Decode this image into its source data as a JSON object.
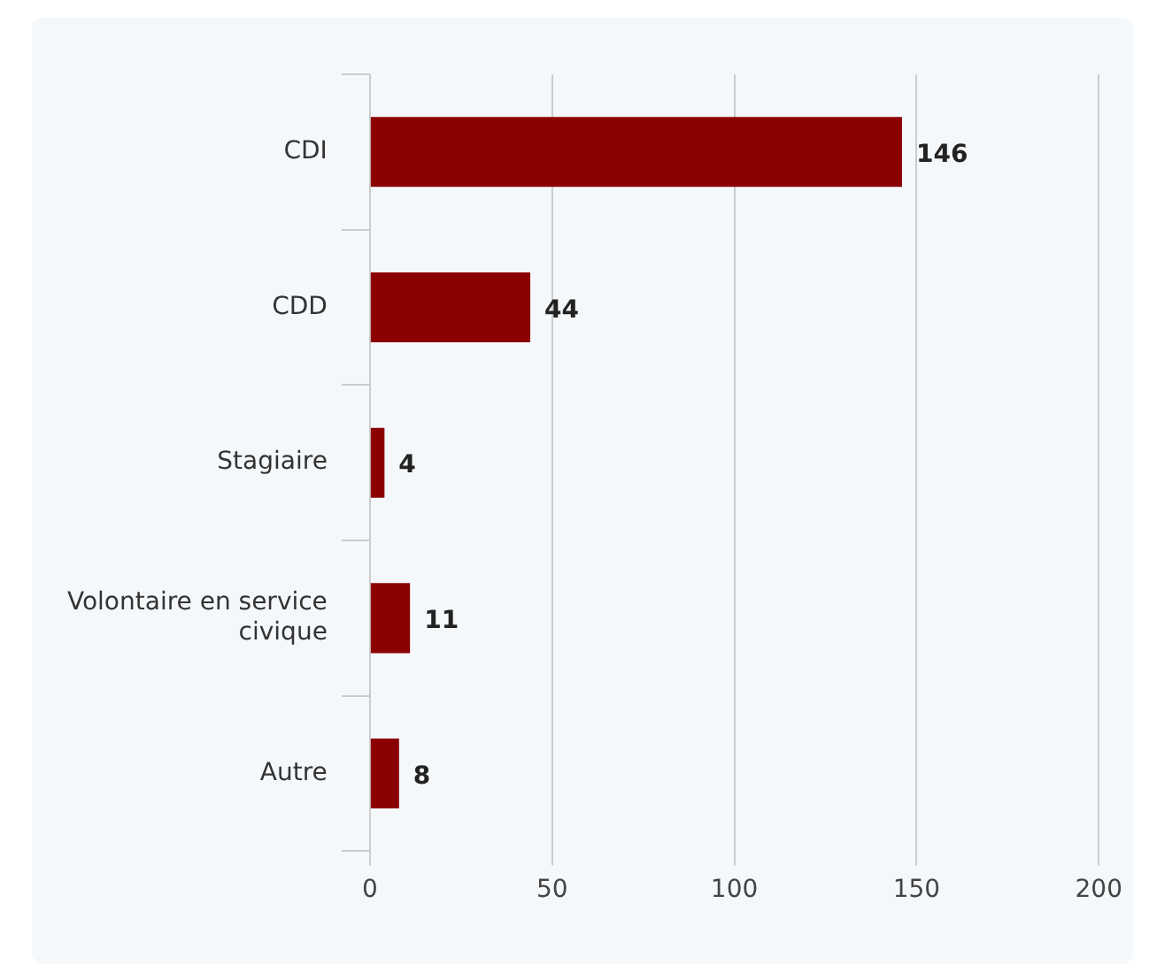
{
  "chart_data": {
    "type": "bar",
    "orientation": "horizontal",
    "categories": [
      "CDI",
      "CDD",
      "Stagiaire",
      "Volontaire en service civique",
      "Autre"
    ],
    "values": [
      146,
      44,
      4,
      11,
      8
    ],
    "color": "#8b0000",
    "xlim": [
      0,
      200
    ],
    "xticks": [
      0,
      50,
      100,
      150,
      200
    ],
    "grid": "x",
    "data_labels": true,
    "legend": false
  }
}
